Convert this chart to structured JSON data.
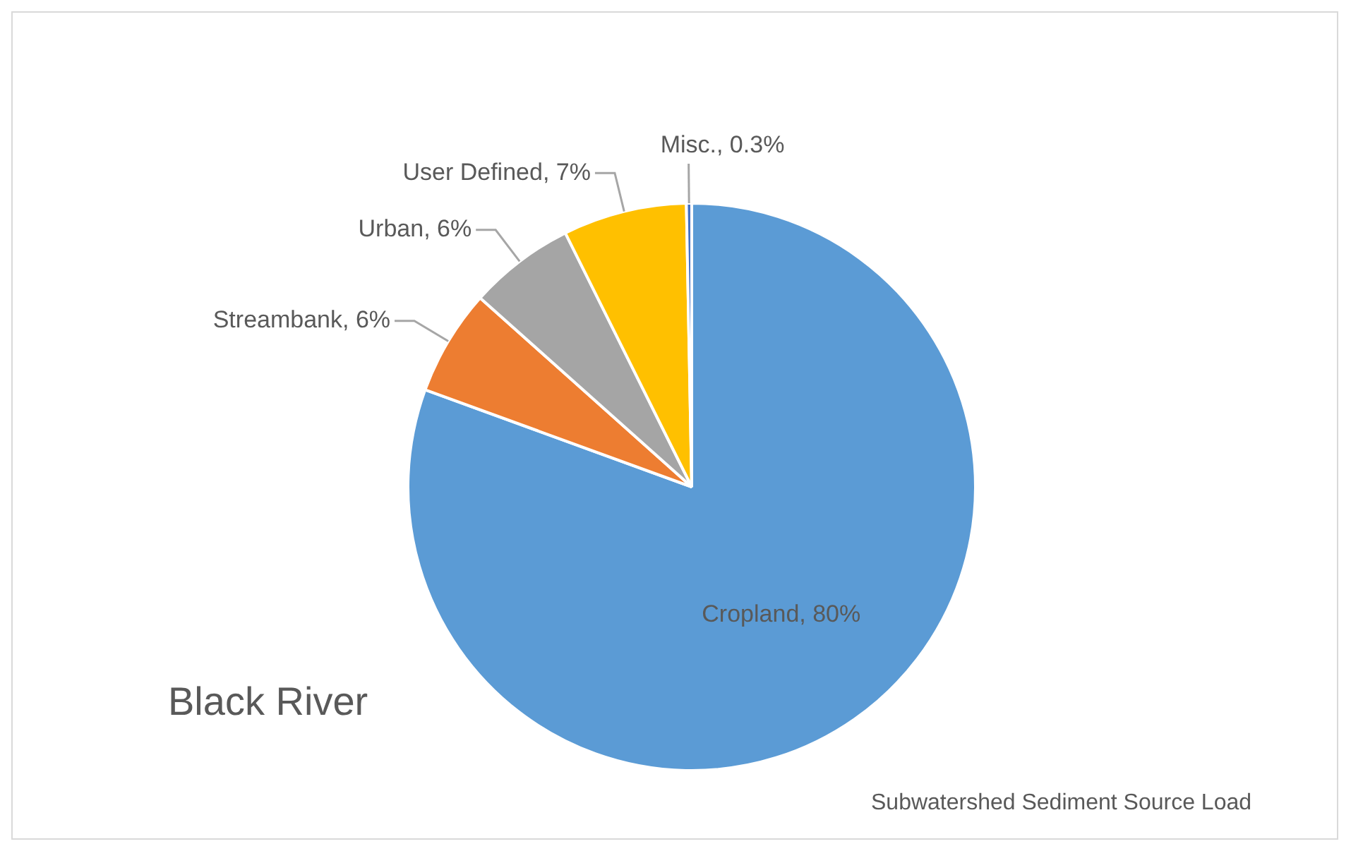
{
  "chart_data": {
    "type": "pie",
    "title": "Black River",
    "categories": [
      "Cropland",
      "Streambank",
      "Urban",
      "User Defined",
      "Misc."
    ],
    "values": [
      80,
      6,
      6,
      7,
      0.3
    ],
    "colors": [
      "#5b9bd5",
      "#ed7d31",
      "#a5a5a5",
      "#ffc000",
      "#4472c4"
    ],
    "value_labels": [
      ", 80%",
      ", 6%",
      ", 6%",
      ", 7%",
      ", 0.3%"
    ],
    "annotations": [
      "Subwatershed Sediment Source Load"
    ]
  }
}
